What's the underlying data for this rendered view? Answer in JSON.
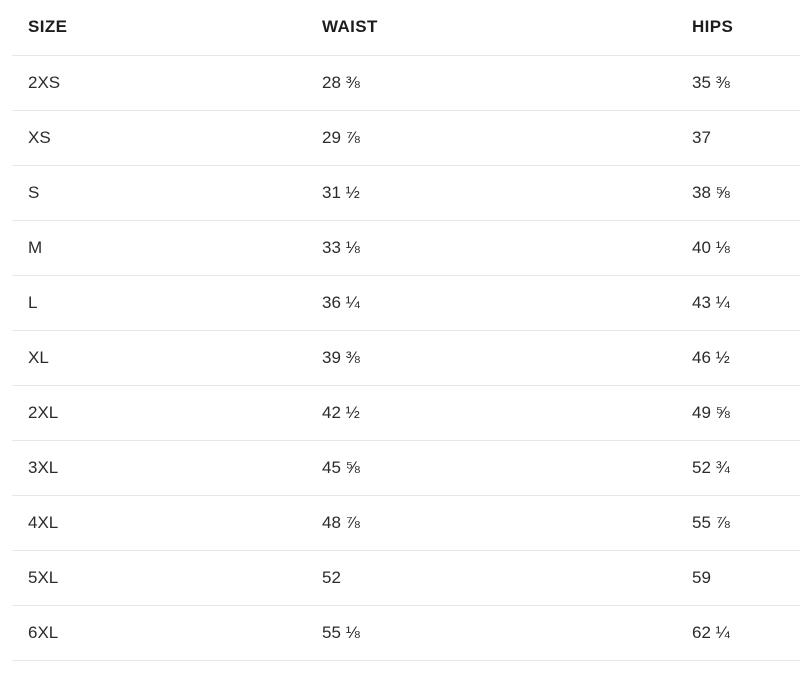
{
  "chart_data": {
    "type": "table",
    "columns": [
      "SIZE",
      "WAIST",
      "HIPS"
    ],
    "rows": [
      {
        "size": "2XS",
        "waist": "28 ⅜",
        "hips": "35 ⅜"
      },
      {
        "size": "XS",
        "waist": "29 ⅞",
        "hips": "37"
      },
      {
        "size": "S",
        "waist": "31 ½",
        "hips": "38 ⅝"
      },
      {
        "size": "M",
        "waist": "33 ⅛",
        "hips": "40 ⅛"
      },
      {
        "size": "L",
        "waist": "36 ¼",
        "hips": "43 ¼"
      },
      {
        "size": "XL",
        "waist": "39 ⅜",
        "hips": "46 ½"
      },
      {
        "size": "2XL",
        "waist": "42 ½",
        "hips": "49 ⅝"
      },
      {
        "size": "3XL",
        "waist": "45 ⅝",
        "hips": "52 ¾"
      },
      {
        "size": "4XL",
        "waist": "48 ⅞",
        "hips": "55 ⅞"
      },
      {
        "size": "5XL",
        "waist": "52",
        "hips": "59"
      },
      {
        "size": "6XL",
        "waist": "55 ⅛",
        "hips": "62 ¼"
      }
    ]
  },
  "colors": {
    "header_text": "#1d1d1d",
    "body_text": "#2b2b2b",
    "divider": "#e7e7e7",
    "background": "#ffffff"
  }
}
